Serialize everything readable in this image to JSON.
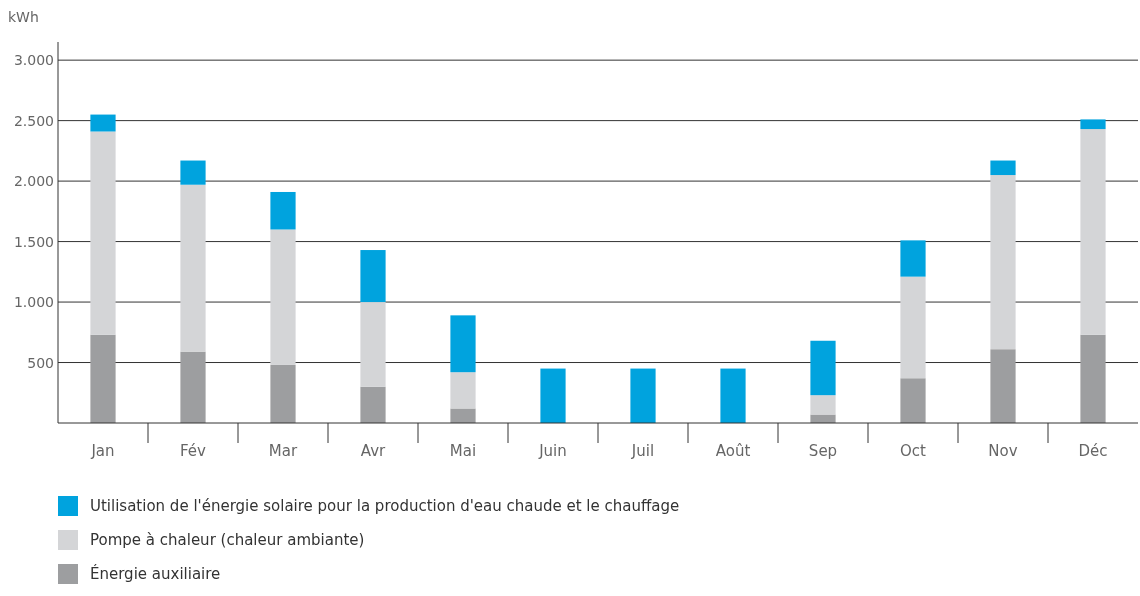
{
  "chart_data": {
    "type": "bar",
    "stacked": true,
    "ylabel": "kWh",
    "categories": [
      "Jan",
      "Fév",
      "Mar",
      "Avr",
      "Mai",
      "Juin",
      "Juil",
      "Août",
      "Sep",
      "Oct",
      "Nov",
      "Déc"
    ],
    "series": [
      {
        "name": "Énergie auxiliaire",
        "color": "#9d9ea0",
        "values": [
          730,
          590,
          480,
          300,
          120,
          0,
          0,
          0,
          70,
          370,
          610,
          730
        ]
      },
      {
        "name": "Pompe à chaleur (chaleur ambiante)",
        "color": "#d4d5d7",
        "values": [
          1680,
          1380,
          1120,
          700,
          300,
          0,
          0,
          0,
          160,
          840,
          1440,
          1700
        ]
      },
      {
        "name": "Utilisation de l'énergie solaire pour la production d'eau chaude et le chauffage",
        "color": "#00a3de",
        "values": [
          140,
          200,
          310,
          430,
          470,
          450,
          450,
          450,
          450,
          300,
          120,
          80
        ]
      }
    ],
    "ylim": [
      0,
      3150
    ],
    "yticks": [
      500,
      {
        "value": 1000,
        "label": "1.000"
      },
      {
        "value": 1500,
        "label": "1.500"
      },
      {
        "value": 2000,
        "label": "2.000"
      },
      {
        "value": 2500,
        "label": "2.500"
      },
      {
        "value": 3000,
        "label": "3.000"
      }
    ],
    "grid": "y",
    "legend": "bottom"
  }
}
